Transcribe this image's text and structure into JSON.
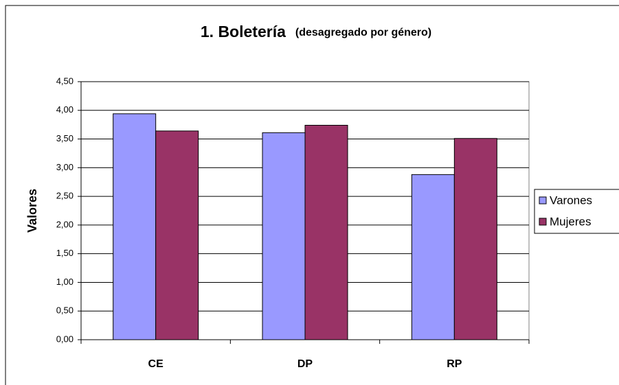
{
  "chart_data": {
    "type": "bar",
    "title": "1. Boletería",
    "subtitle": "(desagregado por género)",
    "y_label": "Valores",
    "categories": [
      "CE",
      "DP",
      "RP"
    ],
    "series": [
      {
        "name": "Varones",
        "color": "#9999ff",
        "values": [
          3.94,
          3.61,
          2.88
        ]
      },
      {
        "name": "Mujeres",
        "color": "#993366",
        "values": [
          3.64,
          3.74,
          3.51
        ]
      }
    ],
    "ylim": [
      0,
      4.5
    ],
    "yticks": [
      {
        "value": 0,
        "label": "0,00"
      },
      {
        "value": 0.5,
        "label": "0,50"
      },
      {
        "value": 1,
        "label": "1,00"
      },
      {
        "value": 1.5,
        "label": "1,50"
      },
      {
        "value": 2,
        "label": "2,00"
      },
      {
        "value": 2.5,
        "label": "2,50"
      },
      {
        "value": 3,
        "label": "3,00"
      },
      {
        "value": 3.5,
        "label": "3,50"
      },
      {
        "value": 4,
        "label": "4,00"
      },
      {
        "value": 4.5,
        "label": "4,50"
      }
    ],
    "grid": true,
    "legend": "right"
  }
}
